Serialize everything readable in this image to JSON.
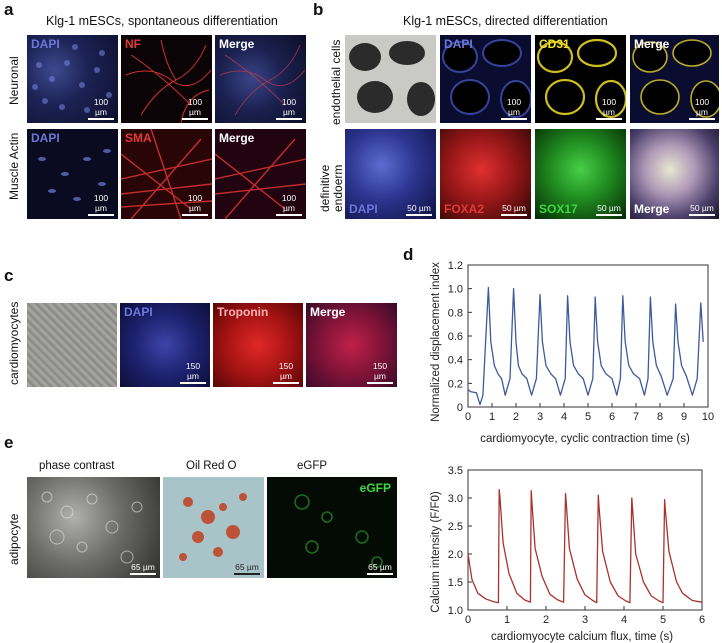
{
  "panels": {
    "a": {
      "letter": "a",
      "header": "Klg-1 mESCs, spontaneous differentiation",
      "rows": [
        {
          "label": "Neuronal",
          "tiles": [
            {
              "label": "DAPI",
              "scale": "100 µm",
              "color": "#6b78d8"
            },
            {
              "label": "NF",
              "scale": "100 µm",
              "color": "#e23a3a"
            },
            {
              "label": "Merge",
              "scale": "100 µm",
              "color": "#ffffff"
            }
          ]
        },
        {
          "label": "Muscle Actin",
          "tiles": [
            {
              "label": "DAPI",
              "scale": "100 µm",
              "color": "#6b78d8"
            },
            {
              "label": "SMA",
              "scale": "100 µm",
              "color": "#e23a3a"
            },
            {
              "label": "Merge",
              "scale": "100 µm",
              "color": "#ffffff"
            }
          ]
        }
      ]
    },
    "b": {
      "letter": "b",
      "header": "Klg-1 mESCs, directed differentiation",
      "rows": [
        {
          "label": "endothelial cells",
          "tiles": [
            {
              "label": "",
              "scale": "",
              "color": ""
            },
            {
              "label": "DAPI",
              "scale": "100 µm",
              "color": "#6b78d8"
            },
            {
              "label": "CD31",
              "scale": "100 µm",
              "color": "#f1e32b"
            },
            {
              "label": "Merge",
              "scale": "100 µm",
              "color": "#ffffff"
            }
          ]
        },
        {
          "label_line1": "definitive",
          "label_line2": "endoerm",
          "tiles": [
            {
              "label": "DAPI",
              "scale": "50 µm",
              "color": "#6b78d8"
            },
            {
              "label": "FOXA2",
              "scale": "50 µm",
              "color": "#e23a3a"
            },
            {
              "label": "SOX17",
              "scale": "50 µm",
              "color": "#3fd83f"
            },
            {
              "label": "Merge",
              "scale": "50 µm",
              "color": "#ffffff"
            }
          ]
        }
      ]
    },
    "c": {
      "letter": "c",
      "row_label": "cardiomyocytes",
      "tiles": [
        {
          "label": "",
          "scale": "",
          "color": ""
        },
        {
          "label": "DAPI",
          "scale": "150 µm",
          "color": "#6b78d8"
        },
        {
          "label": "Troponin",
          "scale": "150 µm",
          "color": "#e23a3a"
        },
        {
          "label": "Merge",
          "scale": "150 µm",
          "color": "#ffffff"
        }
      ]
    },
    "d": {
      "letter": "d"
    },
    "e": {
      "letter": "e",
      "row_label": "adipocyte",
      "tiles": [
        {
          "caption": "phase contrast",
          "label": "",
          "scale": "65 µm",
          "color": ""
        },
        {
          "caption": "Oil Red O",
          "label": "",
          "scale": "65 µm",
          "color": ""
        },
        {
          "caption": "eGFP",
          "label": "eGFP",
          "scale": "65 µm",
          "color": "#3fd83f"
        }
      ]
    }
  },
  "chart_data": [
    {
      "type": "line",
      "panel": "d",
      "title": "",
      "xlabel": "cardiomyocyte, cyclic contraction time (s)",
      "ylabel": "Normalized displacement index",
      "xlim": [
        0,
        10
      ],
      "ylim": [
        0,
        1.2
      ],
      "xticks": [
        0,
        1,
        2,
        3,
        4,
        5,
        6,
        7,
        8,
        9,
        10
      ],
      "yticks": [
        0,
        0.2,
        0.4,
        0.6,
        0.8,
        1.0,
        1.2
      ],
      "ytick_labels": [
        "0",
        "0.2",
        "0.4",
        "0.6",
        "0.8",
        "1.0",
        "1.2"
      ],
      "color": "#3f5a9a",
      "series": [
        {
          "x": [
            0,
            0.1,
            0.35,
            0.5,
            0.62,
            0.72,
            0.85,
            0.95,
            1.1,
            1.25,
            1.4,
            1.55,
            1.75,
            1.9,
            2.0,
            2.1,
            2.25,
            2.45,
            2.65,
            2.85,
            3.0,
            3.1,
            3.25,
            3.45,
            3.65,
            3.85,
            4.05,
            4.15,
            4.25,
            4.4,
            4.6,
            4.8,
            5.0,
            5.2,
            5.3,
            5.4,
            5.55,
            5.75,
            6.0,
            6.2,
            6.35,
            6.45,
            6.55,
            6.7,
            6.9,
            7.15,
            7.35,
            7.5,
            7.6,
            7.7,
            7.85,
            8.05,
            8.3,
            8.55,
            8.65,
            8.75,
            8.9,
            9.1,
            9.35,
            9.55,
            9.7,
            9.8
          ],
          "y": [
            0.15,
            0.13,
            0.12,
            0.02,
            0.1,
            0.5,
            1.01,
            0.55,
            0.35,
            0.28,
            0.24,
            0.1,
            0.24,
            1.0,
            0.55,
            0.35,
            0.28,
            0.24,
            0.1,
            0.24,
            0.95,
            0.55,
            0.35,
            0.28,
            0.24,
            0.1,
            0.24,
            0.94,
            0.55,
            0.35,
            0.28,
            0.24,
            0.1,
            0.24,
            0.93,
            0.55,
            0.35,
            0.28,
            0.24,
            0.1,
            0.24,
            0.94,
            0.55,
            0.35,
            0.28,
            0.24,
            0.1,
            0.24,
            0.93,
            0.55,
            0.35,
            0.26,
            0.1,
            0.24,
            0.87,
            0.55,
            0.35,
            0.26,
            0.1,
            0.24,
            0.88,
            0.55
          ]
        }
      ]
    },
    {
      "type": "line",
      "panel": "e-right",
      "title": "",
      "xlabel": "cardiomyocyte calcium flux, time (s)",
      "ylabel": "Calcium intensity (F/F0)",
      "xlim": [
        0,
        6
      ],
      "ylim": [
        1.0,
        3.5
      ],
      "xticks": [
        0,
        1,
        2,
        3,
        4,
        5,
        6
      ],
      "yticks": [
        1.0,
        1.5,
        2.0,
        2.5,
        3.0,
        3.5
      ],
      "ytick_labels": [
        "1.0",
        "1.5",
        "2.0",
        "2.5",
        "3.0",
        "3.5"
      ],
      "color": "#a8322e",
      "series": [
        {
          "x": [
            0,
            0.1,
            0.25,
            0.45,
            0.65,
            0.78,
            0.8,
            0.82,
            0.9,
            1.05,
            1.25,
            1.45,
            1.6,
            1.62,
            1.64,
            1.72,
            1.9,
            2.1,
            2.3,
            2.45,
            2.5,
            2.52,
            2.6,
            2.8,
            3.0,
            3.2,
            3.3,
            3.34,
            3.36,
            3.45,
            3.65,
            3.85,
            4.05,
            4.15,
            4.2,
            4.22,
            4.3,
            4.5,
            4.7,
            4.9,
            5.0,
            5.04,
            5.06,
            5.15,
            5.35,
            5.5,
            5.75,
            6.0
          ],
          "y": [
            2.0,
            1.55,
            1.3,
            1.2,
            1.15,
            1.13,
            3.15,
            3.0,
            2.2,
            1.65,
            1.3,
            1.18,
            1.14,
            3.13,
            2.9,
            2.1,
            1.6,
            1.28,
            1.18,
            1.14,
            3.08,
            2.9,
            2.1,
            1.55,
            1.27,
            1.17,
            1.13,
            3.05,
            2.85,
            2.05,
            1.5,
            1.25,
            1.16,
            1.13,
            3.0,
            2.8,
            2.0,
            1.5,
            1.25,
            1.16,
            1.13,
            2.97,
            2.8,
            2.05,
            1.5,
            1.3,
            1.17,
            1.14
          ]
        }
      ]
    }
  ]
}
